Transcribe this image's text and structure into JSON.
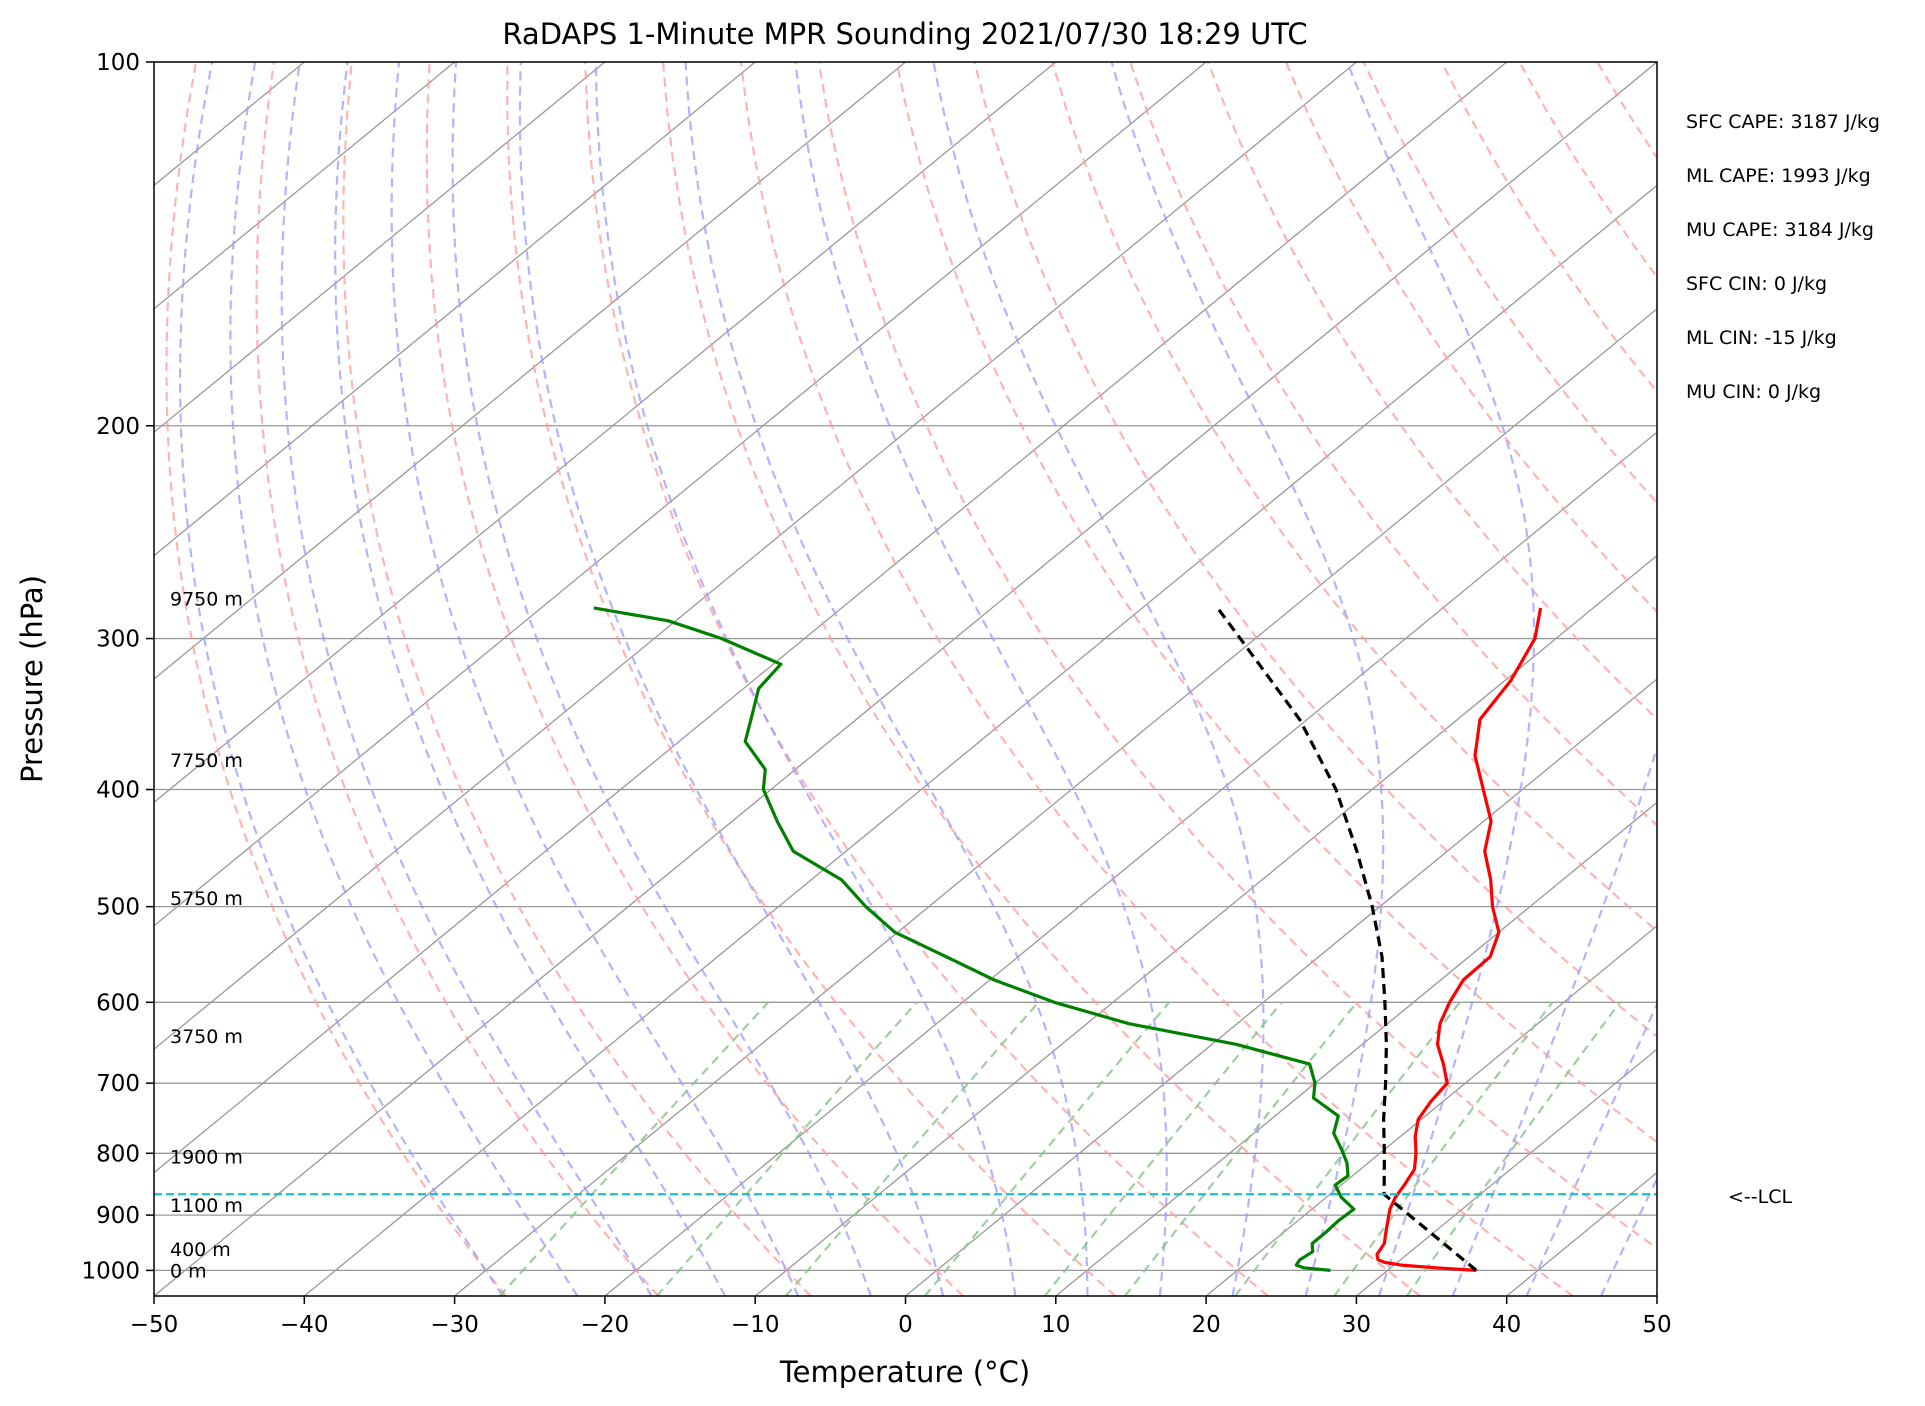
{
  "chart_data": {
    "type": "line",
    "title": "RaDAPS 1-Minute MPR Sounding 2021/07/30 18:29 UTC",
    "xlabel": "Temperature (°C)",
    "ylabel": "Pressure (hPa)",
    "xlim": [
      -50,
      50
    ],
    "ylim": [
      1050,
      100
    ],
    "y_scale": "log",
    "skew_t": true,
    "grid": true,
    "x_ticks": [
      -50,
      -40,
      -30,
      -20,
      -10,
      0,
      10,
      20,
      30,
      40,
      50
    ],
    "x_tick_labels": [
      "−50",
      "−40",
      "−30",
      "−20",
      "−10",
      "0",
      "10",
      "20",
      "30",
      "40",
      "50"
    ],
    "y_ticks": [
      100,
      200,
      300,
      400,
      500,
      600,
      700,
      800,
      900,
      1000
    ],
    "y_tick_labels": [
      "100",
      "200",
      "300",
      "400",
      "500",
      "600",
      "700",
      "800",
      "900",
      "1000"
    ],
    "series": [
      {
        "role": "temperature",
        "color": "#ff0000",
        "p": [
          1000,
          995,
          990,
          985,
          980,
          970,
          950,
          930,
          910,
          890,
          870,
          850,
          825,
          800,
          775,
          750,
          725,
          700,
          675,
          650,
          625,
          600,
          575,
          550,
          525,
          500,
          475,
          450,
          425,
          400,
          375,
          350,
          325,
          300,
          283
        ],
        "t": [
          35.9,
          33.0,
          30.5,
          29.2,
          28.5,
          28.0,
          27.6,
          26.8,
          26.0,
          25.2,
          24.6,
          24.2,
          23.6,
          22.4,
          21.0,
          19.8,
          19.2,
          18.8,
          17.0,
          15.0,
          13.5,
          12.4,
          11.5,
          11.4,
          10.0,
          7.5,
          5.2,
          2.5,
          0.5,
          -2.6,
          -5.9,
          -8.5,
          -9.6,
          -11.4,
          -13.5
        ]
      },
      {
        "role": "dewpoint",
        "color": "#008000",
        "p": [
          1000,
          995,
          990,
          980,
          965,
          950,
          930,
          910,
          890,
          870,
          850,
          835,
          815,
          795,
          770,
          745,
          720,
          700,
          675,
          650,
          625,
          600,
          575,
          550,
          525,
          500,
          475,
          450,
          425,
          400,
          385,
          365,
          350,
          330,
          315,
          300,
          290,
          283
        ],
        "t": [
          26.2,
          24.2,
          23.5,
          23.3,
          23.5,
          22.8,
          22.8,
          22.7,
          22.8,
          21.0,
          19.6,
          19.7,
          18.6,
          17.2,
          15.3,
          14.2,
          11.1,
          10.0,
          8.1,
          1.6,
          -7.2,
          -13.9,
          -19.7,
          -24.8,
          -30.2,
          -34.2,
          -38.0,
          -43.5,
          -47.0,
          -50.5,
          -52.0,
          -55.6,
          -57.0,
          -59.0,
          -59.5,
          -65.5,
          -70.5,
          -76.5
        ]
      },
      {
        "role": "parcel",
        "color": "#000000",
        "dashed": true,
        "p": [
          1000,
          865,
          800,
          750,
          700,
          650,
          600,
          550,
          500,
          450,
          400,
          350,
          300,
          283
        ],
        "t": [
          35.9,
          23.6,
          20.3,
          17.5,
          14.7,
          11.6,
          8.1,
          4.2,
          -0.5,
          -6.0,
          -12.4,
          -20.5,
          -31.0,
          -35.0
        ]
      }
    ],
    "lcl_hpa": 865,
    "lcl_label": "<--LCL",
    "height_labels": [
      {
        "label": "0 m",
        "p": 1000
      },
      {
        "label": "400 m",
        "p": 960
      },
      {
        "label": "1100 m",
        "p": 883
      },
      {
        "label": "1900 m",
        "p": 805
      },
      {
        "label": "3750 m",
        "p": 640
      },
      {
        "label": "5750 m",
        "p": 492
      },
      {
        "label": "7750 m",
        "p": 378
      },
      {
        "label": "9750 m",
        "p": 278
      }
    ],
    "annotations": [
      "SFC CAPE: 3187 J/kg",
      "ML CAPE: 1993 J/kg",
      "MU CAPE: 3184 J/kg",
      "SFC CIN: 0 J/kg",
      "ML CIN: -15 J/kg",
      "MU CIN: 0 J/kg"
    ],
    "colors": {
      "dry_adiabat": "#ff9999",
      "moist_adiabat": "#9999ff",
      "mixing_ratio": "#88c088",
      "isotherm": "#999999",
      "lcl_line": "#17becf"
    }
  }
}
